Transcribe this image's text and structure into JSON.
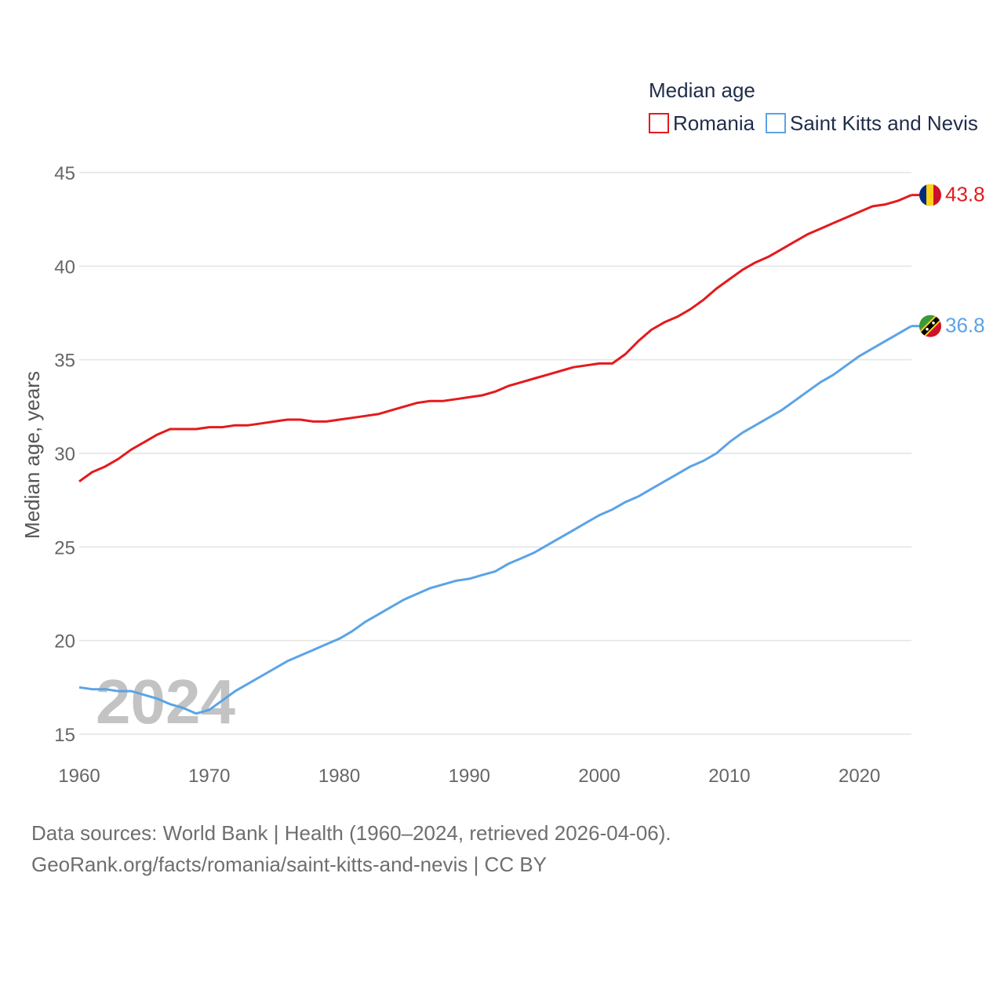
{
  "chart_data": {
    "type": "line",
    "title": "Median age",
    "ylabel": "Median age, years",
    "xlabel": "",
    "xlim": [
      1960,
      2024
    ],
    "ylim": [
      15,
      45
    ],
    "yticks": [
      15,
      20,
      25,
      30,
      35,
      40,
      45
    ],
    "xticks": [
      1960,
      1970,
      1980,
      1990,
      2000,
      2010,
      2020
    ],
    "grid": true,
    "legend_position": "top-right",
    "year_watermark": "2024",
    "x": [
      1960,
      1961,
      1962,
      1963,
      1964,
      1965,
      1966,
      1967,
      1968,
      1969,
      1970,
      1971,
      1972,
      1973,
      1974,
      1975,
      1976,
      1977,
      1978,
      1979,
      1980,
      1981,
      1982,
      1983,
      1984,
      1985,
      1986,
      1987,
      1988,
      1989,
      1990,
      1991,
      1992,
      1993,
      1994,
      1995,
      1996,
      1997,
      1998,
      1999,
      2000,
      2001,
      2002,
      2003,
      2004,
      2005,
      2006,
      2007,
      2008,
      2009,
      2010,
      2011,
      2012,
      2013,
      2014,
      2015,
      2016,
      2017,
      2018,
      2019,
      2020,
      2021,
      2022,
      2023,
      2024
    ],
    "series": [
      {
        "name": "Romania",
        "color": "#e41a1c",
        "end_label": "43.8",
        "flag": "romania-flag",
        "values": [
          28.5,
          29.0,
          29.3,
          29.7,
          30.2,
          30.6,
          31.0,
          31.3,
          31.3,
          31.3,
          31.4,
          31.4,
          31.5,
          31.5,
          31.6,
          31.7,
          31.8,
          31.8,
          31.7,
          31.7,
          31.8,
          31.9,
          32.0,
          32.1,
          32.3,
          32.5,
          32.7,
          32.8,
          32.8,
          32.9,
          33.0,
          33.1,
          33.3,
          33.6,
          33.8,
          34.0,
          34.2,
          34.4,
          34.6,
          34.7,
          34.8,
          34.8,
          35.3,
          36.0,
          36.6,
          37.0,
          37.3,
          37.7,
          38.2,
          38.8,
          39.3,
          39.8,
          40.2,
          40.5,
          40.9,
          41.3,
          41.7,
          42.0,
          42.3,
          42.6,
          42.9,
          43.2,
          43.3,
          43.5,
          43.8
        ]
      },
      {
        "name": "Saint Kitts and Nevis",
        "color": "#5ba3e6",
        "end_label": "36.8",
        "flag": "saint-kitts-and-nevis-flag",
        "values": [
          17.5,
          17.4,
          17.4,
          17.3,
          17.3,
          17.1,
          16.9,
          16.6,
          16.4,
          16.1,
          16.3,
          16.8,
          17.3,
          17.7,
          18.1,
          18.5,
          18.9,
          19.2,
          19.5,
          19.8,
          20.1,
          20.5,
          21.0,
          21.4,
          21.8,
          22.2,
          22.5,
          22.8,
          23.0,
          23.2,
          23.3,
          23.5,
          23.7,
          24.1,
          24.4,
          24.7,
          25.1,
          25.5,
          25.9,
          26.3,
          26.7,
          27.0,
          27.4,
          27.7,
          28.1,
          28.5,
          28.9,
          29.3,
          29.6,
          30.0,
          30.6,
          31.1,
          31.5,
          31.9,
          32.3,
          32.8,
          33.3,
          33.8,
          34.2,
          34.7,
          35.2,
          35.6,
          36.0,
          36.4,
          36.8
        ]
      }
    ]
  },
  "source": {
    "line1": "Data sources: World Bank | Health (1960–2024, retrieved 2026-04-06).",
    "line2": "GeoRank.org/facts/romania/saint-kitts-and-nevis | CC BY"
  }
}
